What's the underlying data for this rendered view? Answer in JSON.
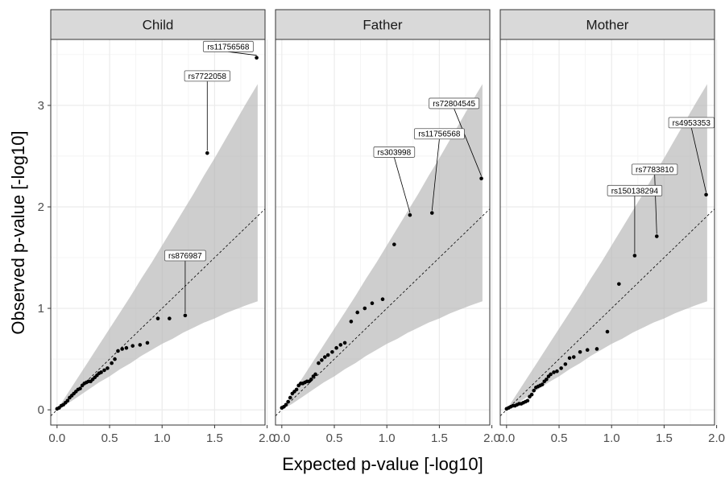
{
  "chart_data": {
    "type": "scatter",
    "xlabel": "Expected p-value [-log10]",
    "ylabel": "Observed p-value [-log10]",
    "xlim": [
      -0.06,
      1.98
    ],
    "ylim": [
      -0.15,
      3.65
    ],
    "x_ticks": [
      0.0,
      0.5,
      1.0,
      1.5,
      2.0
    ],
    "x_tick_labels": [
      "0.0",
      "0.5",
      "1.0",
      "1.5",
      "2.0"
    ],
    "y_ticks": [
      0,
      1,
      2,
      3
    ],
    "y_tick_labels": [
      "0",
      "1",
      "2",
      "3"
    ],
    "reference_line": "y = x (dashed)",
    "confidence_band": {
      "x": [
        0.0,
        0.1,
        0.2,
        0.3,
        0.4,
        0.5,
        0.6,
        0.7,
        0.8,
        0.9,
        1.0,
        1.1,
        1.2,
        1.3,
        1.4,
        1.5,
        1.6,
        1.7,
        1.8,
        1.91
      ],
      "lower": [
        0.0,
        0.06,
        0.13,
        0.2,
        0.27,
        0.33,
        0.4,
        0.46,
        0.53,
        0.59,
        0.65,
        0.7,
        0.76,
        0.81,
        0.86,
        0.9,
        0.95,
        0.99,
        1.03,
        1.07
      ],
      "upper": [
        0.0,
        0.16,
        0.32,
        0.48,
        0.64,
        0.8,
        0.96,
        1.12,
        1.29,
        1.45,
        1.62,
        1.79,
        1.96,
        2.13,
        2.31,
        2.48,
        2.66,
        2.84,
        3.02,
        3.21
      ]
    },
    "panels": [
      {
        "name": "Child",
        "points": [
          [
            0.0,
            0.01
          ],
          [
            0.02,
            0.02
          ],
          [
            0.04,
            0.04
          ],
          [
            0.06,
            0.05
          ],
          [
            0.08,
            0.07
          ],
          [
            0.1,
            0.09
          ],
          [
            0.12,
            0.12
          ],
          [
            0.14,
            0.14
          ],
          [
            0.16,
            0.16
          ],
          [
            0.18,
            0.18
          ],
          [
            0.2,
            0.2
          ],
          [
            0.22,
            0.21
          ],
          [
            0.24,
            0.24
          ],
          [
            0.26,
            0.26
          ],
          [
            0.28,
            0.27
          ],
          [
            0.3,
            0.28
          ],
          [
            0.32,
            0.28
          ],
          [
            0.34,
            0.3
          ],
          [
            0.36,
            0.32
          ],
          [
            0.38,
            0.34
          ],
          [
            0.4,
            0.36
          ],
          [
            0.42,
            0.37
          ],
          [
            0.45,
            0.39
          ],
          [
            0.48,
            0.41
          ],
          [
            0.52,
            0.46
          ],
          [
            0.55,
            0.5
          ],
          [
            0.58,
            0.58
          ],
          [
            0.62,
            0.6
          ],
          [
            0.66,
            0.61
          ],
          [
            0.72,
            0.63
          ],
          [
            0.79,
            0.64
          ],
          [
            0.86,
            0.66
          ],
          [
            0.96,
            0.9
          ],
          [
            1.07,
            0.9
          ],
          [
            1.22,
            0.93
          ],
          [
            1.43,
            2.53
          ],
          [
            1.9,
            3.47
          ]
        ],
        "labels": [
          {
            "text": "rs11756568",
            "x": 1.9,
            "y": 3.47,
            "lx": 1.63,
            "ly": 3.58
          },
          {
            "text": "rs7722058",
            "x": 1.43,
            "y": 2.53,
            "lx": 1.43,
            "ly": 3.29
          },
          {
            "text": "rs876987",
            "x": 1.22,
            "y": 0.93,
            "lx": 1.22,
            "ly": 1.52
          }
        ]
      },
      {
        "name": "Father",
        "points": [
          [
            0.0,
            0.02
          ],
          [
            0.02,
            0.03
          ],
          [
            0.04,
            0.05
          ],
          [
            0.06,
            0.08
          ],
          [
            0.08,
            0.12
          ],
          [
            0.1,
            0.16
          ],
          [
            0.12,
            0.18
          ],
          [
            0.14,
            0.2
          ],
          [
            0.16,
            0.24
          ],
          [
            0.18,
            0.26
          ],
          [
            0.2,
            0.26
          ],
          [
            0.22,
            0.27
          ],
          [
            0.24,
            0.28
          ],
          [
            0.26,
            0.28
          ],
          [
            0.28,
            0.3
          ],
          [
            0.3,
            0.33
          ],
          [
            0.32,
            0.35
          ],
          [
            0.35,
            0.46
          ],
          [
            0.38,
            0.49
          ],
          [
            0.41,
            0.52
          ],
          [
            0.44,
            0.54
          ],
          [
            0.48,
            0.57
          ],
          [
            0.52,
            0.61
          ],
          [
            0.56,
            0.64
          ],
          [
            0.6,
            0.66
          ],
          [
            0.66,
            0.87
          ],
          [
            0.72,
            0.96
          ],
          [
            0.79,
            1.0
          ],
          [
            0.86,
            1.05
          ],
          [
            0.96,
            1.09
          ],
          [
            1.07,
            1.63
          ],
          [
            1.22,
            1.92
          ],
          [
            1.43,
            1.94
          ],
          [
            1.9,
            2.28
          ]
        ],
        "labels": [
          {
            "text": "rs72804545",
            "x": 1.9,
            "y": 2.28,
            "lx": 1.64,
            "ly": 3.02
          },
          {
            "text": "rs11756568",
            "x": 1.43,
            "y": 1.94,
            "lx": 1.5,
            "ly": 2.72
          },
          {
            "text": "rs303998",
            "x": 1.22,
            "y": 1.92,
            "lx": 1.07,
            "ly": 2.54
          }
        ]
      },
      {
        "name": "Mother",
        "points": [
          [
            0.0,
            0.01
          ],
          [
            0.02,
            0.02
          ],
          [
            0.04,
            0.03
          ],
          [
            0.06,
            0.04
          ],
          [
            0.08,
            0.04
          ],
          [
            0.1,
            0.05
          ],
          [
            0.12,
            0.06
          ],
          [
            0.14,
            0.06
          ],
          [
            0.16,
            0.07
          ],
          [
            0.18,
            0.08
          ],
          [
            0.2,
            0.09
          ],
          [
            0.22,
            0.13
          ],
          [
            0.24,
            0.15
          ],
          [
            0.26,
            0.19
          ],
          [
            0.28,
            0.22
          ],
          [
            0.3,
            0.23
          ],
          [
            0.32,
            0.24
          ],
          [
            0.34,
            0.25
          ],
          [
            0.36,
            0.28
          ],
          [
            0.38,
            0.3
          ],
          [
            0.4,
            0.33
          ],
          [
            0.42,
            0.35
          ],
          [
            0.45,
            0.37
          ],
          [
            0.48,
            0.38
          ],
          [
            0.52,
            0.41
          ],
          [
            0.56,
            0.45
          ],
          [
            0.6,
            0.51
          ],
          [
            0.64,
            0.52
          ],
          [
            0.7,
            0.57
          ],
          [
            0.77,
            0.59
          ],
          [
            0.86,
            0.6
          ],
          [
            0.96,
            0.77
          ],
          [
            1.07,
            1.24
          ],
          [
            1.22,
            1.52
          ],
          [
            1.43,
            1.71
          ],
          [
            1.9,
            2.12
          ]
        ],
        "labels": [
          {
            "text": "rs4953353",
            "x": 1.9,
            "y": 2.12,
            "lx": 1.76,
            "ly": 2.83
          },
          {
            "text": "rs7783810",
            "x": 1.43,
            "y": 1.71,
            "lx": 1.41,
            "ly": 2.37
          },
          {
            "text": "rs150138294",
            "x": 1.22,
            "y": 1.52,
            "lx": 1.22,
            "ly": 2.16
          }
        ]
      }
    ]
  }
}
